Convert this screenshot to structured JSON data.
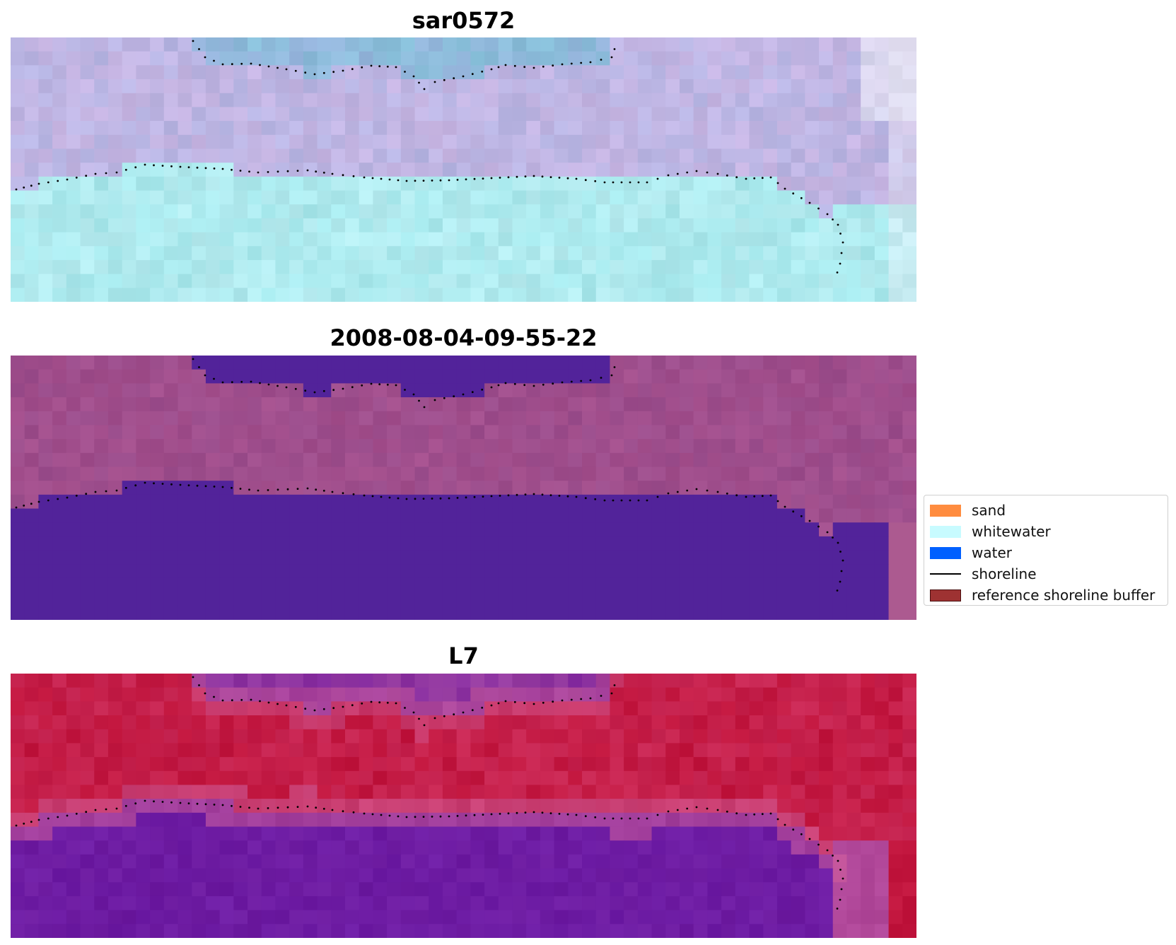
{
  "panels": [
    {
      "id": "top",
      "title": "sar0572"
    },
    {
      "id": "mid",
      "title": "2008-08-04-09-55-22"
    },
    {
      "id": "bot",
      "title": "L7"
    }
  ],
  "legend": {
    "items": [
      {
        "label": "sand",
        "color": "#ff8c3f",
        "kind": "patch"
      },
      {
        "label": "whitewater",
        "color": "#c8fbff",
        "kind": "patch"
      },
      {
        "label": "water",
        "color": "#0060ff",
        "kind": "patch"
      },
      {
        "label": "shoreline",
        "color": "#000000",
        "kind": "line"
      },
      {
        "label": "reference shoreline buffer",
        "color": "#9e3232",
        "kind": "patch-edge"
      }
    ]
  },
  "colors": {
    "classified_water": "#52239a",
    "classified_land": "#9a4d8c",
    "sar_water": "#a6e8ec",
    "sar_land": "#b7b6e4",
    "l7_land": "#c0143c",
    "l7_water": "#6d1ba0"
  }
}
